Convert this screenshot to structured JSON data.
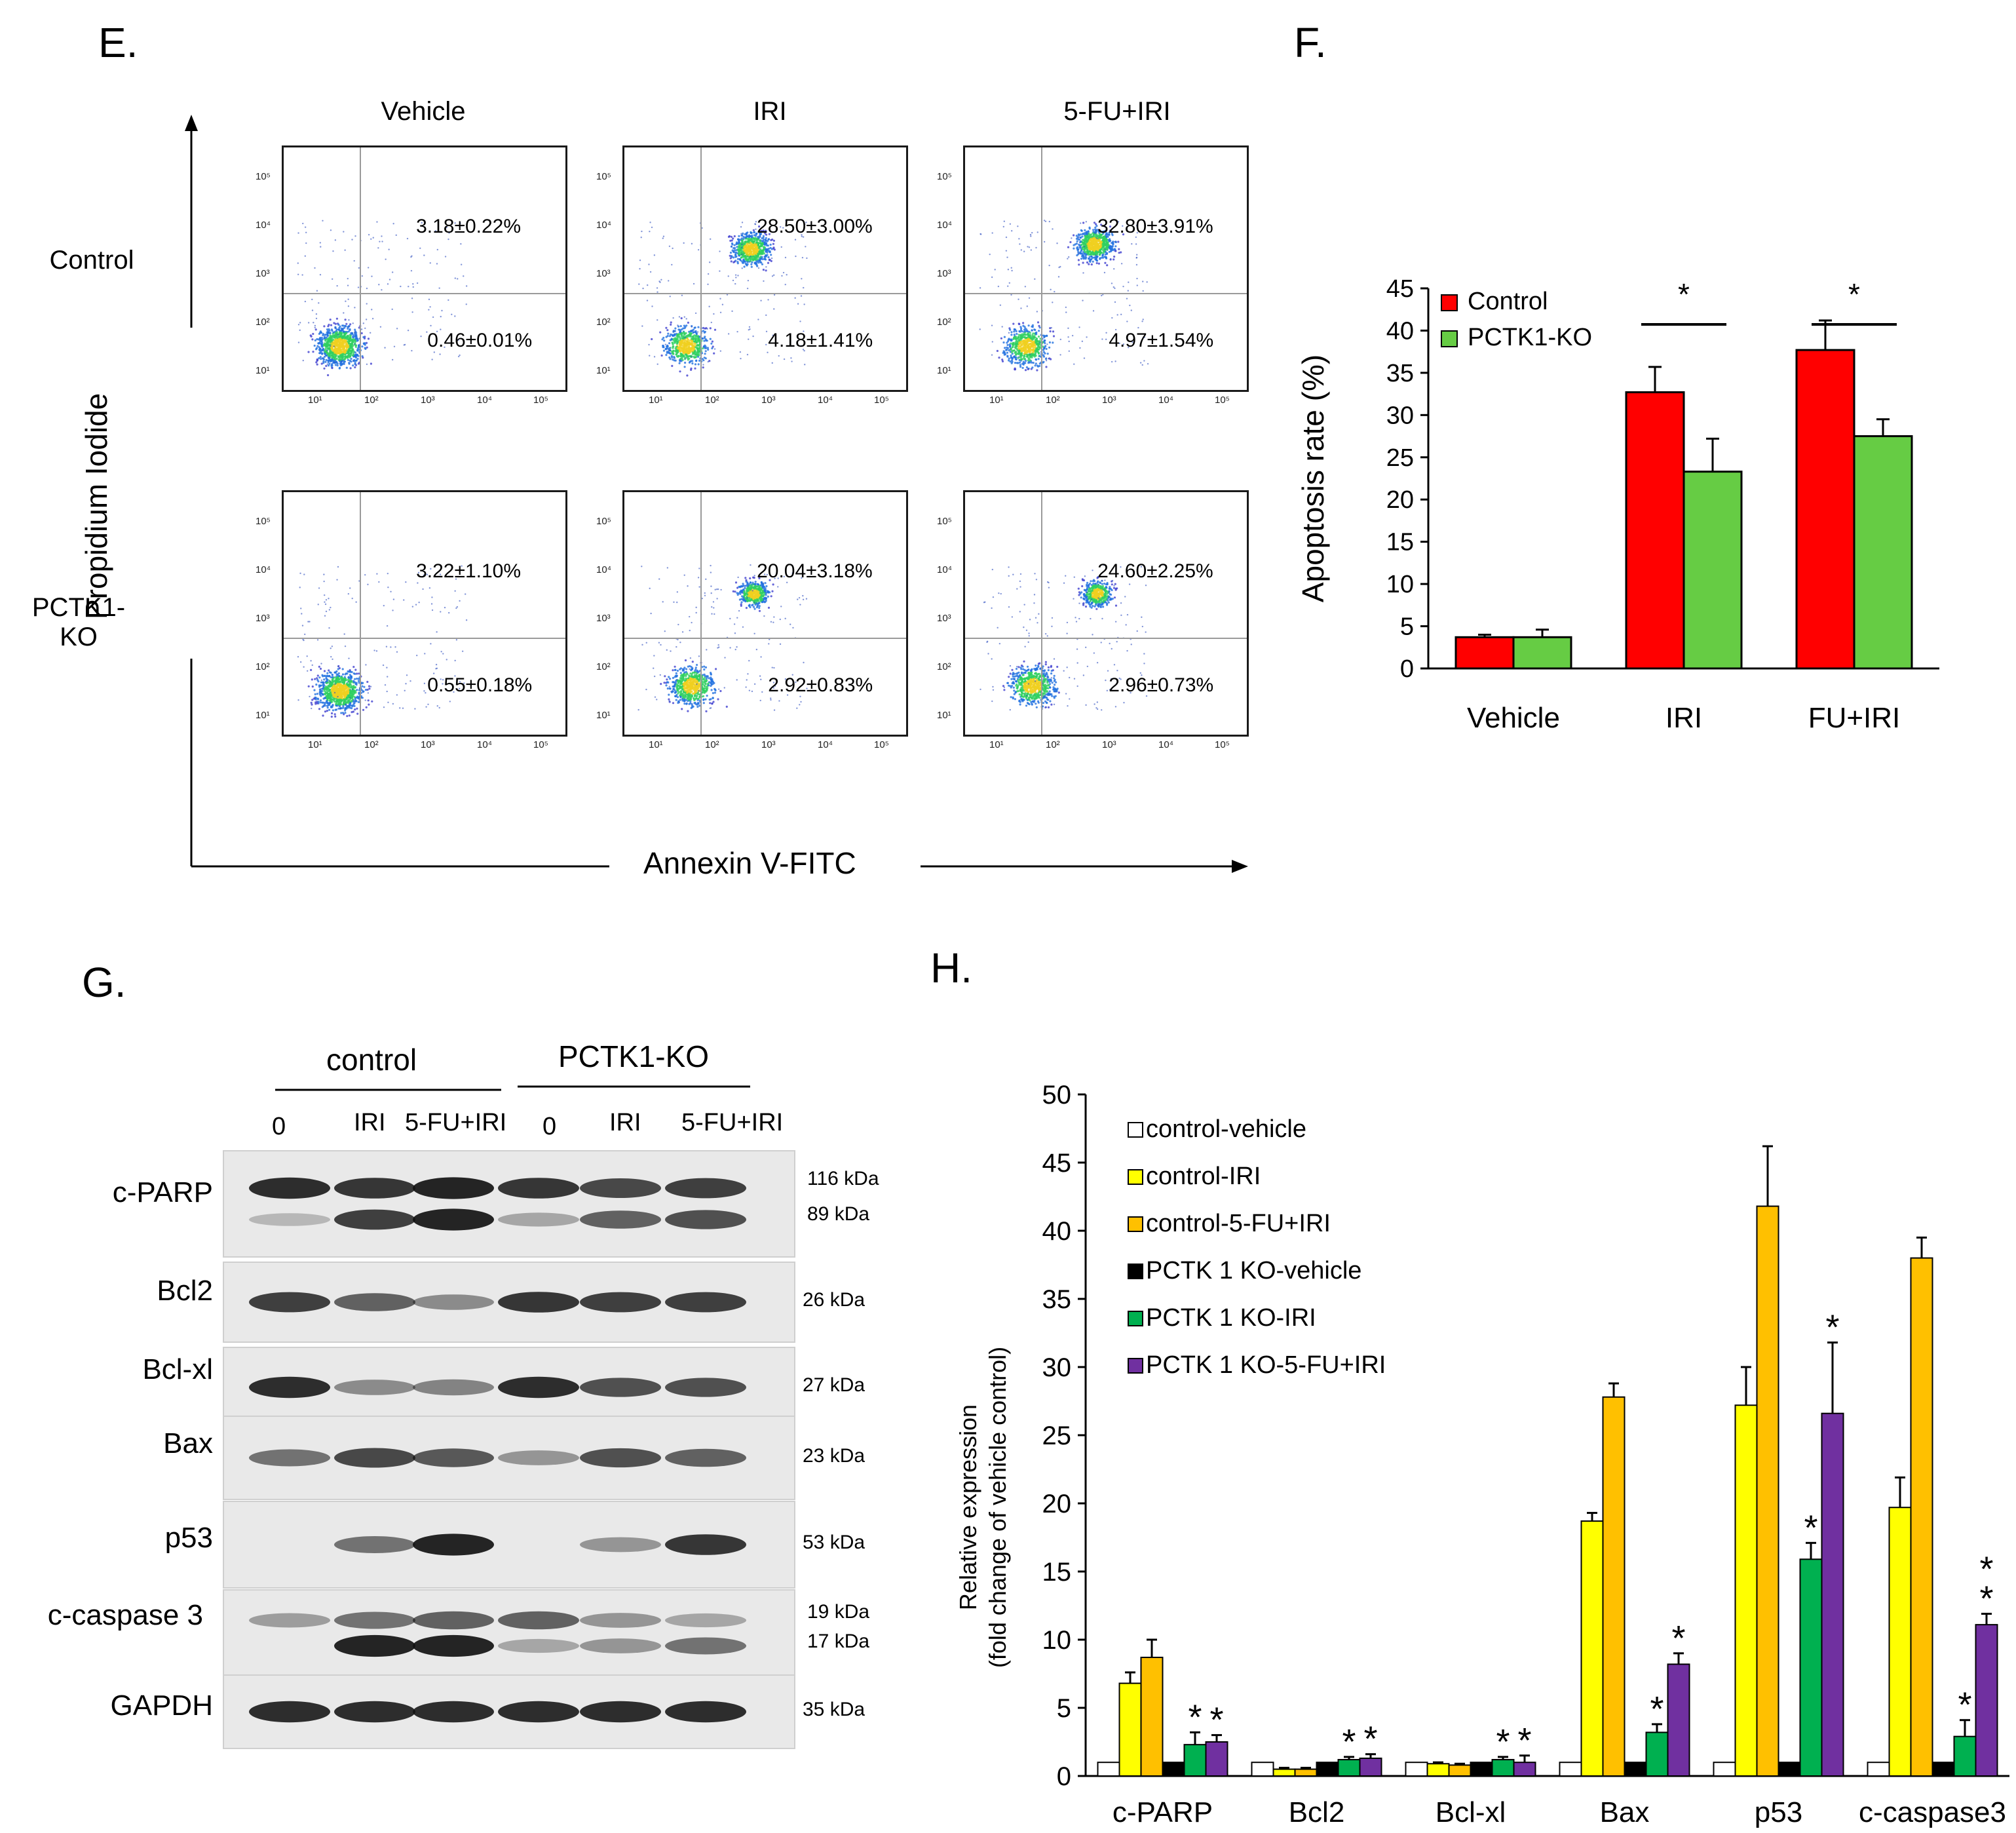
{
  "panel_E": {
    "letter": "E.",
    "columns": [
      "Vehicle",
      "IRI",
      "5-FU+IRI"
    ],
    "rows": [
      "Control",
      "PCTK1-\nKO"
    ],
    "y_axis_label": "Propidium Iodide",
    "x_axis_label": "Annexin V-FITC",
    "tick_labels": [
      "10¹",
      "10²",
      "10³",
      "10⁴",
      "10⁵"
    ],
    "plots": [
      [
        {
          "upper": "3.18±0.22%",
          "lower": "0.46±0.01%"
        },
        {
          "upper": "28.50±3.00%",
          "lower": "4.18±1.41%"
        },
        {
          "upper": "32.80±3.91%",
          "lower": "4.97±1.54%"
        }
      ],
      [
        {
          "upper": "3.22±1.10%",
          "lower": "0.55±0.18%"
        },
        {
          "upper": "20.04±3.18%",
          "lower": "2.92±0.83%"
        },
        {
          "upper": "24.60±2.25%",
          "lower": "2.96±0.73%"
        }
      ]
    ]
  },
  "panel_F": {
    "letter": "F."
  },
  "panel_G": {
    "letter": "G.",
    "group_labels": [
      "control",
      "PCTK1-KO"
    ],
    "lanes": [
      "0",
      "IRI",
      "5-FU+IRI",
      "0",
      "IRI",
      "5-FU+IRI"
    ],
    "blots": [
      {
        "name": "c-PARP",
        "kda": [
          "116 kDa",
          "89 kDa"
        ]
      },
      {
        "name": "Bcl2",
        "kda": [
          "26 kDa"
        ]
      },
      {
        "name": "Bcl-xl",
        "kda": [
          "27 kDa"
        ]
      },
      {
        "name": "Bax",
        "kda": [
          "23 kDa"
        ]
      },
      {
        "name": "p53",
        "kda": [
          "53 kDa"
        ]
      },
      {
        "name": "c-caspase 3",
        "kda": [
          "19 kDa",
          "17 kDa"
        ]
      },
      {
        "name": "GAPDH",
        "kda": [
          "35 kDa"
        ]
      }
    ]
  },
  "panel_H": {
    "letter": "H."
  },
  "chart_data": [
    {
      "id": "F",
      "type": "bar",
      "title": "",
      "xlabel": "",
      "ylabel": "Apoptosis rate (%)",
      "categories": [
        "Vehicle",
        "IRI",
        "FU+IRI"
      ],
      "ylim": [
        0,
        45
      ],
      "yticks": [
        0,
        5,
        10,
        15,
        20,
        25,
        30,
        35,
        40,
        45
      ],
      "legend_position": "top-left",
      "series": [
        {
          "name": "Control",
          "color": "#ff0000",
          "values": [
            3.7,
            32.7,
            37.7
          ],
          "errors": [
            0.3,
            3.0,
            3.5
          ]
        },
        {
          "name": "PCTK1-KO",
          "color": "#66cc44",
          "values": [
            3.7,
            23.3,
            27.5
          ],
          "errors": [
            0.9,
            3.9,
            2.0
          ]
        }
      ],
      "significance": [
        {
          "category": "IRI",
          "label": "*"
        },
        {
          "category": "FU+IRI",
          "label": "*"
        }
      ]
    },
    {
      "id": "H",
      "type": "bar",
      "title": "",
      "xlabel": "",
      "ylabel": "Relative expression",
      "ylabel2": "(fold change of vehicle control)",
      "categories": [
        "c-PARP",
        "Bcl2",
        "Bcl-xl",
        "Bax",
        "p53",
        "c-caspase3"
      ],
      "ylim": [
        0,
        50
      ],
      "yticks": [
        0,
        5,
        10,
        15,
        20,
        25,
        30,
        35,
        40,
        45,
        50
      ],
      "legend_position": "top-left",
      "series": [
        {
          "name": "control-vehicle",
          "color": "#ffffff",
          "values": [
            1,
            1,
            1,
            1,
            1,
            1
          ],
          "errors": [
            0,
            0,
            0,
            0,
            0,
            0
          ]
        },
        {
          "name": "control-IRI",
          "color": "#ffff00",
          "values": [
            6.8,
            0.5,
            0.9,
            18.7,
            27.2,
            19.7
          ],
          "errors": [
            0.8,
            0.1,
            0.1,
            0.6,
            2.8,
            2.2
          ]
        },
        {
          "name": "control-5-FU+IRI",
          "color": "#ffc000",
          "values": [
            8.7,
            0.5,
            0.8,
            27.8,
            41.8,
            38.0
          ],
          "errors": [
            1.3,
            0.1,
            0.1,
            1.0,
            4.4,
            1.5
          ]
        },
        {
          "name": "PCTK 1 KO-vehicle",
          "color": "#000000",
          "values": [
            1,
            1,
            1,
            1,
            1,
            1
          ],
          "errors": [
            0,
            0,
            0,
            0,
            0,
            0
          ]
        },
        {
          "name": "PCTK 1 KO-IRI",
          "color": "#00b050",
          "values": [
            2.3,
            1.2,
            1.2,
            3.2,
            15.9,
            2.9
          ],
          "errors": [
            0.9,
            0.2,
            0.2,
            0.6,
            1.2,
            1.2
          ]
        },
        {
          "name": "PCTK 1 KO-5-FU+IRI",
          "color": "#7030a0",
          "values": [
            2.5,
            1.3,
            1.0,
            8.2,
            26.6,
            11.1
          ],
          "errors": [
            0.5,
            0.3,
            0.5,
            0.8,
            5.2,
            0.8
          ]
        }
      ],
      "significance": [
        {
          "category": "c-PARP",
          "labels": [
            "*",
            "*"
          ]
        },
        {
          "category": "Bcl2",
          "labels": [
            "*",
            "*"
          ]
        },
        {
          "category": "Bcl-xl",
          "labels": [
            "*",
            "*"
          ]
        },
        {
          "category": "Bax",
          "labels": [
            "*",
            "*"
          ]
        },
        {
          "category": "p53",
          "labels": [
            "*",
            "*"
          ]
        },
        {
          "category": "c-caspase3",
          "labels": [
            "*",
            "**"
          ]
        }
      ]
    }
  ]
}
